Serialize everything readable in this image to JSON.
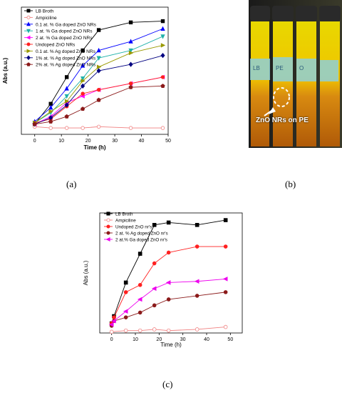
{
  "panels": {
    "a_label": "(a)",
    "b_label": "(b)",
    "c_label": "(c)"
  },
  "photo": {
    "caption": "ZnO NRs on PE",
    "tube_labels": [
      "LB",
      "PE",
      "O"
    ]
  },
  "chart_data": [
    {
      "type": "line",
      "title": "",
      "xlabel": "Time (h)",
      "ylabel": "Abs (a.u.)",
      "xlim": [
        -5,
        50
      ],
      "xticks": [
        0,
        10,
        20,
        30,
        40,
        50
      ],
      "ylim": [
        0,
        1
      ],
      "grid": false,
      "legend_position": "top-left",
      "series": [
        {
          "name": "LB Broth",
          "color": "#000000",
          "marker": "square",
          "filled": true,
          "x": [
            0,
            6,
            12,
            18,
            24,
            36,
            48
          ],
          "y": [
            0.08,
            0.24,
            0.45,
            0.66,
            0.82,
            0.88,
            0.89
          ]
        },
        {
          "name": "Ampiciline",
          "color": "#f08080",
          "marker": "circle",
          "filled": false,
          "x": [
            0,
            6,
            12,
            18,
            24,
            36,
            48
          ],
          "y": [
            0.06,
            0.05,
            0.05,
            0.05,
            0.06,
            0.05,
            0.05
          ]
        },
        {
          "name": "0.1 at. % Ga doped ZnO NRs",
          "color": "#0000ff",
          "marker": "triangle-up",
          "filled": true,
          "x": [
            0,
            6,
            12,
            18,
            24,
            36,
            48
          ],
          "y": [
            0.1,
            0.21,
            0.36,
            0.54,
            0.66,
            0.73,
            0.83
          ]
        },
        {
          "name": "1 at. % Ga doped ZnO NRs",
          "color": "#20b2aa",
          "marker": "triangle-down",
          "filled": true,
          "x": [
            0,
            6,
            12,
            18,
            24,
            36,
            48
          ],
          "y": [
            0.09,
            0.17,
            0.3,
            0.44,
            0.6,
            0.66,
            0.77
          ]
        },
        {
          "name": "2 at. % Ga doped ZnO NRs",
          "color": "#ff00ff",
          "marker": "triangle-left",
          "filled": true,
          "x": [
            0,
            6,
            12,
            18,
            24,
            36,
            48
          ],
          "y": [
            0.08,
            0.14,
            0.25,
            0.3,
            0.35,
            0.4,
            0.45
          ]
        },
        {
          "name": "Undoped ZnO NRs",
          "color": "#ff2020",
          "marker": "circle",
          "filled": true,
          "x": [
            0,
            6,
            12,
            18,
            24,
            36,
            48
          ],
          "y": [
            0.09,
            0.12,
            0.22,
            0.32,
            0.35,
            0.4,
            0.45
          ]
        },
        {
          "name": "0.1 at. % Ag doped ZnO NRs",
          "color": "#999900",
          "marker": "triangle-right",
          "filled": true,
          "x": [
            0,
            6,
            12,
            18,
            24,
            36,
            48
          ],
          "y": [
            0.09,
            0.18,
            0.26,
            0.42,
            0.53,
            0.64,
            0.7
          ]
        },
        {
          "name": "1% at. % Ag doped ZnO NRs",
          "color": "#000080",
          "marker": "diamond",
          "filled": true,
          "x": [
            0,
            6,
            12,
            18,
            24,
            36,
            48
          ],
          "y": [
            0.08,
            0.13,
            0.23,
            0.38,
            0.5,
            0.55,
            0.62
          ]
        },
        {
          "name": "2% at. % Ag doped ZnO NRs",
          "color": "#8b1a1a",
          "marker": "pentagon",
          "filled": true,
          "x": [
            0,
            6,
            12,
            18,
            24,
            36,
            48
          ],
          "y": [
            0.08,
            0.1,
            0.14,
            0.2,
            0.27,
            0.37,
            0.38
          ]
        }
      ]
    },
    {
      "type": "line",
      "title": "",
      "xlabel": "Time (h)",
      "ylabel": "Abs (a.u.)",
      "xlim": [
        -5,
        55
      ],
      "xticks": [
        0,
        10,
        20,
        30,
        40,
        50
      ],
      "ylim": [
        0,
        1
      ],
      "grid": false,
      "legend_position": "top-left",
      "series": [
        {
          "name": "LB Broth",
          "color": "#000000",
          "marker": "square",
          "filled": true,
          "x": [
            0,
            1,
            6,
            12,
            18,
            24,
            36,
            48
          ],
          "y": [
            0.08,
            0.14,
            0.42,
            0.66,
            0.9,
            0.92,
            0.9,
            0.94
          ]
        },
        {
          "name": "Ampiciline",
          "color": "#f08080",
          "marker": "circle",
          "filled": false,
          "x": [
            0,
            6,
            12,
            18,
            24,
            36,
            48
          ],
          "y": [
            0.01,
            0.02,
            0.02,
            0.03,
            0.02,
            0.03,
            0.05
          ]
        },
        {
          "name": "Undoped ZnO nr's",
          "color": "#ff2020",
          "marker": "circle",
          "filled": true,
          "x": [
            0,
            1,
            6,
            12,
            18,
            24,
            36,
            48
          ],
          "y": [
            0.08,
            0.13,
            0.34,
            0.4,
            0.58,
            0.67,
            0.72,
            0.72
          ]
        },
        {
          "name": "2 at. % Ag doped ZnO nr's",
          "color": "#8b1a1a",
          "marker": "circle",
          "filled": true,
          "x": [
            0,
            1,
            6,
            12,
            18,
            24,
            36,
            48
          ],
          "y": [
            0.06,
            0.1,
            0.13,
            0.17,
            0.23,
            0.28,
            0.31,
            0.34
          ]
        },
        {
          "name": "2 at.% Ga doped ZnO nr's",
          "color": "#ee00ee",
          "marker": "triangle-left",
          "filled": true,
          "x": [
            0,
            1,
            6,
            12,
            18,
            24,
            36,
            48
          ],
          "y": [
            0.07,
            0.1,
            0.18,
            0.28,
            0.37,
            0.42,
            0.43,
            0.45
          ]
        }
      ]
    }
  ]
}
